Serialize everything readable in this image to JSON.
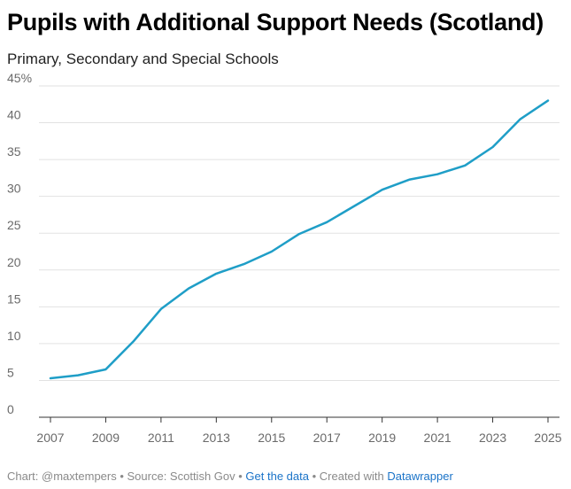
{
  "header": {
    "title": "Pupils with Additional Support Needs (Scotland)",
    "subtitle": "Primary, Secondary and Special Schools"
  },
  "chart_data": {
    "type": "line",
    "title": "Pupils with Additional Support Needs (Scotland)",
    "subtitle": "Primary, Secondary and Special Schools",
    "xlabel": "",
    "ylabel": "",
    "x": [
      2007,
      2008,
      2009,
      2010,
      2011,
      2012,
      2013,
      2014,
      2015,
      2016,
      2017,
      2018,
      2019,
      2020,
      2021,
      2022,
      2023,
      2024,
      2025
    ],
    "series": [
      {
        "values": [
          5.3,
          5.7,
          6.5,
          10.3,
          14.7,
          17.5,
          19.5,
          20.8,
          22.5,
          24.9,
          26.5,
          28.7,
          30.9,
          32.3,
          33.0,
          34.2,
          36.7,
          40.5,
          43.0
        ]
      }
    ],
    "xlim": [
      2007,
      2025
    ],
    "ylim": [
      0,
      45
    ],
    "x_ticks": [
      "2007",
      "2009",
      "2011",
      "2013",
      "2015",
      "2017",
      "2019",
      "2021",
      "2023",
      "2025"
    ],
    "y_ticks": [
      "0",
      "5",
      "10",
      "15",
      "20",
      "25",
      "30",
      "35",
      "40",
      "45%"
    ],
    "grid": true,
    "line_color": "#1f9ec7"
  },
  "footer": {
    "credit": "Chart: @maxtempers",
    "sep1": " • ",
    "source": "Source: Scottish Gov",
    "sep2": " • ",
    "get_data": "Get the data",
    "sep3": " • ",
    "created": "Created with ",
    "tool": "Datawrapper"
  }
}
